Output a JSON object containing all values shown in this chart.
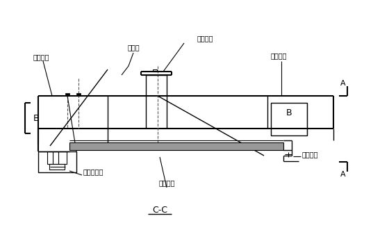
{
  "title": "C-C",
  "bg_color": "#ffffff",
  "line_color": "#000000",
  "labels": {
    "yi_jiao_liang_duan": "已浇梁段",
    "dai_jiao_liang_duan": "待浇梁段",
    "xie_la_suo": "斜拉索",
    "xing_zou_gou_gua": "行走钩挂",
    "hou_mao_zuo_xi_tong": "后锚座系统",
    "ye_ya_zhuang_zhi": "液压装置",
    "gong_zuo_ping_tai": "工作平台",
    "B": "B",
    "A": "A"
  }
}
